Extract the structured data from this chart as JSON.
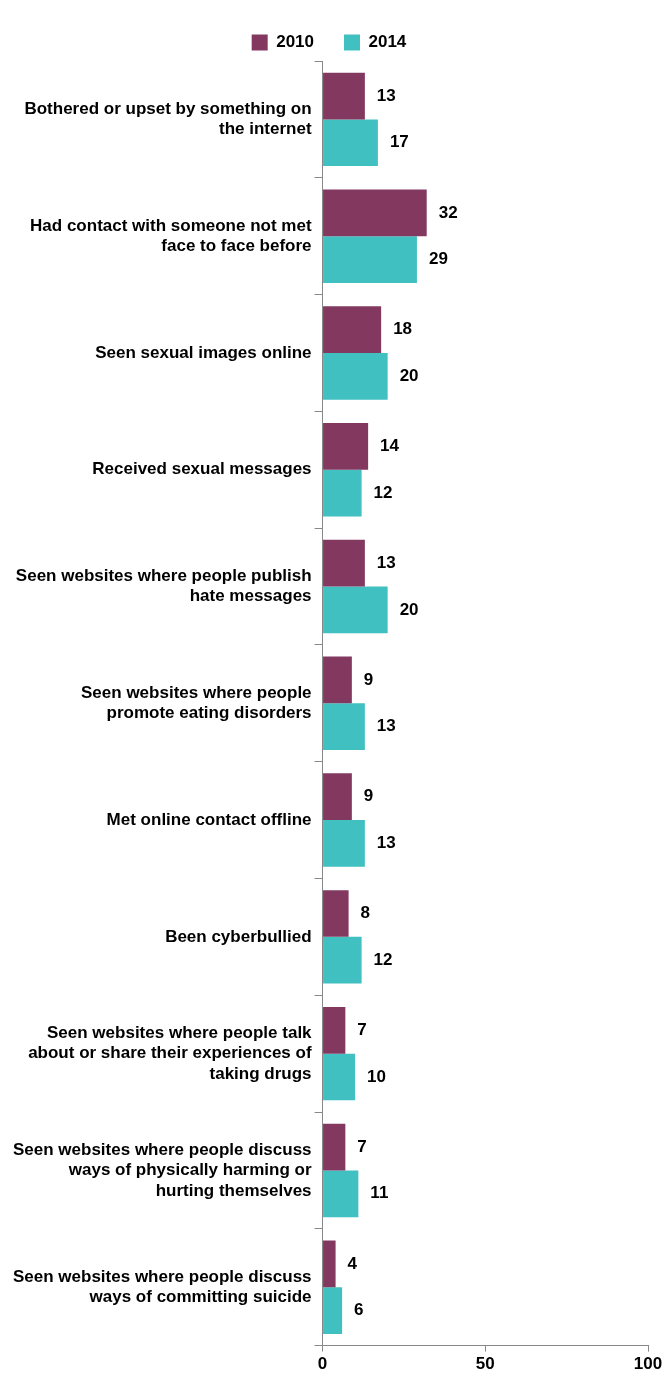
{
  "chart_data": {
    "type": "bar",
    "orientation": "horizontal",
    "categories": [
      "Bothered or upset by something on the internet",
      "Had contact with someone not met face to face before",
      "Seen sexual images online",
      "Received sexual messages",
      "Seen websites where people publish hate messages",
      "Seen websites where people promote eating disorders",
      "Met online contact offline",
      "Been cyberbullied",
      "Seen websites where people talk about or share their experiences of taking drugs",
      "Seen websites where people discuss ways of physically harming or hurting themselves",
      "Seen websites where people discuss ways of committing suicide"
    ],
    "series": [
      {
        "name": "2010",
        "color": "#833860",
        "values": [
          13,
          32,
          18,
          14,
          13,
          9,
          9,
          8,
          7,
          7,
          4
        ]
      },
      {
        "name": "2014",
        "color": "#40c0c0",
        "values": [
          17,
          29,
          20,
          12,
          20,
          13,
          13,
          12,
          10,
          11,
          6
        ]
      }
    ],
    "xlim": [
      0,
      100
    ],
    "xticks": [
      0,
      50,
      100
    ],
    "grid": false,
    "legend": "top",
    "data_labels": true
  }
}
